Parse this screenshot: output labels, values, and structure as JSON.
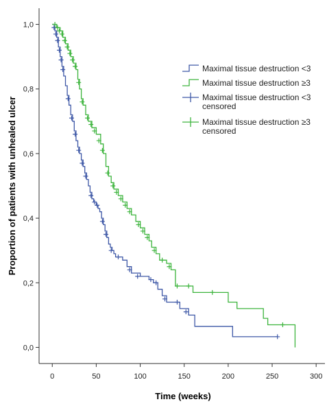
{
  "chart_data": {
    "type": "line",
    "subtype": "kaplan-meier",
    "xlabel": "Time (weeks)",
    "ylabel": "Proportion of patients with unhealed ulcer",
    "xlim": [
      -15,
      310
    ],
    "ylim": [
      -0.05,
      1.05
    ],
    "x_ticks": [
      0,
      50,
      100,
      150,
      200,
      250,
      300
    ],
    "x_tick_labels": [
      "0",
      "50",
      "100",
      "150",
      "200",
      "250",
      "300"
    ],
    "y_ticks": [
      0.0,
      0.2,
      0.4,
      0.6,
      0.8,
      1.0
    ],
    "y_tick_labels": [
      "0,0",
      "0,2",
      "0,4",
      "0,6",
      "0,8",
      "1,0"
    ],
    "grid": false,
    "legend_position": "right",
    "colors": {
      "lt3": "#3d57a6",
      "ge3": "#3cb43c"
    },
    "legend": [
      {
        "lines": [
          "Maximal tissue destruction <3"
        ],
        "color": "#3d57a6",
        "symbol": "step"
      },
      {
        "lines": [
          "Maximal tissue destruction ≥3"
        ],
        "color": "#3cb43c",
        "symbol": "step"
      },
      {
        "lines": [
          "Maximal tissue destruction <3",
          "censored"
        ],
        "color": "#3d57a6",
        "symbol": "plus"
      },
      {
        "lines": [
          "Maximal tissue destruction ≥3",
          "censored"
        ],
        "color": "#3cb43c",
        "symbol": "plus"
      }
    ],
    "series": [
      {
        "name": "Maximal tissue destruction <3",
        "color": "#3d57a6",
        "steps": [
          [
            0,
            1.0
          ],
          [
            3,
            0.98
          ],
          [
            5,
            0.96
          ],
          [
            7,
            0.93
          ],
          [
            9,
            0.9
          ],
          [
            11,
            0.87
          ],
          [
            13,
            0.84
          ],
          [
            15,
            0.81
          ],
          [
            17,
            0.78
          ],
          [
            19,
            0.75
          ],
          [
            21,
            0.72
          ],
          [
            23,
            0.7
          ],
          [
            25,
            0.67
          ],
          [
            27,
            0.64
          ],
          [
            29,
            0.62
          ],
          [
            31,
            0.6
          ],
          [
            33,
            0.58
          ],
          [
            35,
            0.56
          ],
          [
            37,
            0.54
          ],
          [
            39,
            0.52
          ],
          [
            41,
            0.5
          ],
          [
            43,
            0.48
          ],
          [
            45,
            0.46
          ],
          [
            47,
            0.45
          ],
          [
            50,
            0.44
          ],
          [
            52,
            0.43
          ],
          [
            54,
            0.42
          ],
          [
            56,
            0.4
          ],
          [
            58,
            0.38
          ],
          [
            60,
            0.36
          ],
          [
            62,
            0.34
          ],
          [
            64,
            0.32
          ],
          [
            66,
            0.31
          ],
          [
            68,
            0.3
          ],
          [
            70,
            0.29
          ],
          [
            72,
            0.28
          ],
          [
            80,
            0.27
          ],
          [
            85,
            0.25
          ],
          [
            90,
            0.23
          ],
          [
            100,
            0.22
          ],
          [
            110,
            0.21
          ],
          [
            115,
            0.2
          ],
          [
            120,
            0.18
          ],
          [
            125,
            0.16
          ],
          [
            130,
            0.14
          ],
          [
            145,
            0.12
          ],
          [
            155,
            0.1
          ],
          [
            162,
            0.065
          ],
          [
            205,
            0.033
          ],
          [
            256,
            0.033
          ]
        ],
        "censored": [
          [
            2,
            0.99
          ],
          [
            4,
            0.97
          ],
          [
            6,
            0.95
          ],
          [
            8,
            0.92
          ],
          [
            10,
            0.89
          ],
          [
            12,
            0.86
          ],
          [
            18,
            0.77
          ],
          [
            22,
            0.71
          ],
          [
            26,
            0.66
          ],
          [
            30,
            0.61
          ],
          [
            34,
            0.57
          ],
          [
            38,
            0.53
          ],
          [
            44,
            0.47
          ],
          [
            48,
            0.45
          ],
          [
            51,
            0.44
          ],
          [
            57,
            0.39
          ],
          [
            61,
            0.35
          ],
          [
            67,
            0.3
          ],
          [
            75,
            0.28
          ],
          [
            88,
            0.24
          ],
          [
            97,
            0.22
          ],
          [
            112,
            0.21
          ],
          [
            118,
            0.2
          ],
          [
            128,
            0.15
          ],
          [
            142,
            0.14
          ],
          [
            152,
            0.11
          ],
          [
            256,
            0.033
          ]
        ]
      },
      {
        "name": "Maximal tissue destruction ≥3",
        "color": "#3cb43c",
        "steps": [
          [
            0,
            1.0
          ],
          [
            5,
            0.99
          ],
          [
            9,
            0.98
          ],
          [
            12,
            0.96
          ],
          [
            15,
            0.94
          ],
          [
            18,
            0.92
          ],
          [
            21,
            0.9
          ],
          [
            24,
            0.88
          ],
          [
            27,
            0.86
          ],
          [
            29,
            0.83
          ],
          [
            31,
            0.8
          ],
          [
            33,
            0.77
          ],
          [
            35,
            0.75
          ],
          [
            38,
            0.72
          ],
          [
            41,
            0.7
          ],
          [
            45,
            0.68
          ],
          [
            50,
            0.66
          ],
          [
            55,
            0.63
          ],
          [
            58,
            0.6
          ],
          [
            61,
            0.56
          ],
          [
            64,
            0.53
          ],
          [
            67,
            0.51
          ],
          [
            70,
            0.49
          ],
          [
            75,
            0.47
          ],
          [
            80,
            0.45
          ],
          [
            85,
            0.43
          ],
          [
            90,
            0.41
          ],
          [
            95,
            0.39
          ],
          [
            100,
            0.37
          ],
          [
            105,
            0.35
          ],
          [
            110,
            0.33
          ],
          [
            113,
            0.31
          ],
          [
            118,
            0.29
          ],
          [
            122,
            0.27
          ],
          [
            130,
            0.26
          ],
          [
            135,
            0.24
          ],
          [
            140,
            0.19
          ],
          [
            160,
            0.17
          ],
          [
            200,
            0.14
          ],
          [
            210,
            0.12
          ],
          [
            240,
            0.09
          ],
          [
            245,
            0.07
          ],
          [
            276,
            0.0
          ]
        ],
        "censored": [
          [
            3,
            1.0
          ],
          [
            6,
            0.99
          ],
          [
            8,
            0.98
          ],
          [
            11,
            0.97
          ],
          [
            14,
            0.95
          ],
          [
            17,
            0.93
          ],
          [
            20,
            0.91
          ],
          [
            23,
            0.89
          ],
          [
            26,
            0.87
          ],
          [
            30,
            0.82
          ],
          [
            34,
            0.76
          ],
          [
            40,
            0.71
          ],
          [
            44,
            0.69
          ],
          [
            48,
            0.67
          ],
          [
            53,
            0.64
          ],
          [
            57,
            0.61
          ],
          [
            63,
            0.54
          ],
          [
            69,
            0.5
          ],
          [
            73,
            0.48
          ],
          [
            78,
            0.46
          ],
          [
            83,
            0.44
          ],
          [
            88,
            0.42
          ],
          [
            98,
            0.38
          ],
          [
            103,
            0.36
          ],
          [
            108,
            0.34
          ],
          [
            116,
            0.3
          ],
          [
            125,
            0.27
          ],
          [
            133,
            0.25
          ],
          [
            142,
            0.19
          ],
          [
            155,
            0.19
          ],
          [
            182,
            0.17
          ],
          [
            262,
            0.07
          ]
        ]
      }
    ]
  }
}
